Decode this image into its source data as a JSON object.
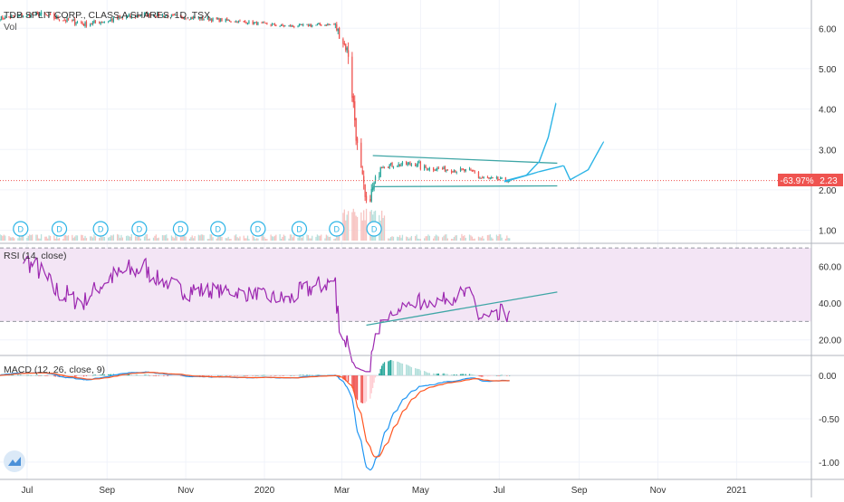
{
  "header": {
    "symbol": "TDB SPLIT CORP., CLASS A SHARES, 1D, TSX",
    "vol_label": "Vol"
  },
  "price_badge": {
    "percent": "-63.97%",
    "price": "2.23"
  },
  "rsi_label": "RSI (14, close)",
  "macd_label": "MACD (12, 26, close, 9)",
  "colors": {
    "up": "#26a69a",
    "down": "#ef5350",
    "rsi": "#9c27b0",
    "rsi_band": "#f3e5f5",
    "macd": "#2196f3",
    "signal": "#ff5722",
    "trend": "#3fa6a6",
    "projection": "#2cb4e6",
    "grid": "#f0f3fa",
    "axis_text": "#333333",
    "badge": "#ef5350"
  },
  "dividend_marker": "D",
  "chart_data": [
    {
      "type": "candlestick",
      "name": "price",
      "yticks": [
        "1.00",
        "2.00",
        "3.00",
        "4.00",
        "5.00",
        "6.00"
      ],
      "ylim": [
        0.7,
        6.7
      ],
      "xlim": [
        "2019-06-10",
        "2021-02-28"
      ],
      "xtick_labels": [
        "Jul",
        "Sep",
        "Nov",
        "2020",
        "Mar",
        "May",
        "Jul",
        "Sep",
        "Nov",
        "2021"
      ],
      "xtick_dates": [
        "2019-07-01",
        "2019-09-01",
        "2019-11-01",
        "2020-01-01",
        "2020-03-01",
        "2020-05-01",
        "2020-07-01",
        "2020-09-01",
        "2020-11-01",
        "2021-01-01"
      ],
      "phases": [
        {
          "start": "2019-06-10",
          "end": "2019-07-10",
          "from": 6.25,
          "to": 6.35,
          "noise": 0.05
        },
        {
          "start": "2019-07-10",
          "end": "2019-08-15",
          "from": 6.35,
          "to": 6.1,
          "noise": 0.07
        },
        {
          "start": "2019-08-15",
          "end": "2019-10-01",
          "from": 6.1,
          "to": 6.35,
          "noise": 0.06
        },
        {
          "start": "2019-10-01",
          "end": "2019-12-01",
          "from": 6.35,
          "to": 6.2,
          "noise": 0.05
        },
        {
          "start": "2019-12-01",
          "end": "2020-01-20",
          "from": 6.2,
          "to": 6.05,
          "noise": 0.04
        },
        {
          "start": "2020-01-20",
          "end": "2020-02-25",
          "from": 6.05,
          "to": 6.1,
          "noise": 0.04
        },
        {
          "start": "2020-02-25",
          "end": "2020-03-06",
          "from": 6.05,
          "to": 5.4,
          "noise": 0.12
        },
        {
          "start": "2020-03-06",
          "end": "2020-03-13",
          "from": 5.4,
          "to": 3.1,
          "noise": 0.25
        },
        {
          "start": "2020-03-13",
          "end": "2020-03-20",
          "from": 3.0,
          "to": 1.5,
          "noise": 0.3
        },
        {
          "start": "2020-03-20",
          "end": "2020-03-31",
          "from": 1.6,
          "to": 2.55,
          "noise": 0.15
        },
        {
          "start": "2020-03-31",
          "end": "2020-05-01",
          "from": 2.6,
          "to": 2.65,
          "noise": 0.06
        },
        {
          "start": "2020-05-01",
          "end": "2020-06-15",
          "from": 2.55,
          "to": 2.45,
          "noise": 0.06
        },
        {
          "start": "2020-06-15",
          "end": "2020-07-10",
          "from": 2.3,
          "to": 2.23,
          "noise": 0.05
        }
      ],
      "dividend_dates": [
        "2019-06-26",
        "2019-07-26",
        "2019-08-27",
        "2019-09-26",
        "2019-10-28",
        "2019-11-26",
        "2019-12-27",
        "2020-01-28",
        "2020-02-26",
        "2020-03-26"
      ],
      "last_price": 2.23,
      "trendlines": [
        {
          "from": {
            "x": "2020-03-25",
            "y": 2.85
          },
          "to": {
            "x": "2020-08-15",
            "y": 2.66
          }
        },
        {
          "from": {
            "x": "2020-03-25",
            "y": 2.08
          },
          "to": {
            "x": "2020-08-15",
            "y": 2.1
          }
        }
      ],
      "projections": [
        {
          "points": [
            {
              "x": "2020-07-05",
              "y": 2.22
            },
            {
              "x": "2020-07-22",
              "y": 2.36
            },
            {
              "x": "2020-08-01",
              "y": 2.7
            },
            {
              "x": "2020-08-08",
              "y": 3.3
            },
            {
              "x": "2020-08-14",
              "y": 4.15
            }
          ]
        },
        {
          "points": [
            {
              "x": "2020-07-05",
              "y": 2.2
            },
            {
              "x": "2020-08-01",
              "y": 2.45
            },
            {
              "x": "2020-08-20",
              "y": 2.6
            },
            {
              "x": "2020-08-25",
              "y": 2.25
            },
            {
              "x": "2020-09-08",
              "y": 2.5
            },
            {
              "x": "2020-09-20",
              "y": 3.2
            }
          ]
        }
      ]
    },
    {
      "type": "line",
      "name": "RSI (14, close)",
      "yticks": [
        "20.00",
        "40.00",
        "60.00"
      ],
      "ylim": [
        12,
        72
      ],
      "band": [
        30,
        70
      ],
      "trendline": {
        "from": {
          "x": "2020-03-20",
          "y": 28
        },
        "to": {
          "x": "2020-08-15",
          "y": 46
        }
      }
    },
    {
      "type": "line",
      "name": "MACD (12, 26, close, 9)",
      "yticks": [
        "0.00",
        "-0.50",
        "-1.00"
      ],
      "ylim": [
        -1.2,
        0.22
      ]
    }
  ]
}
